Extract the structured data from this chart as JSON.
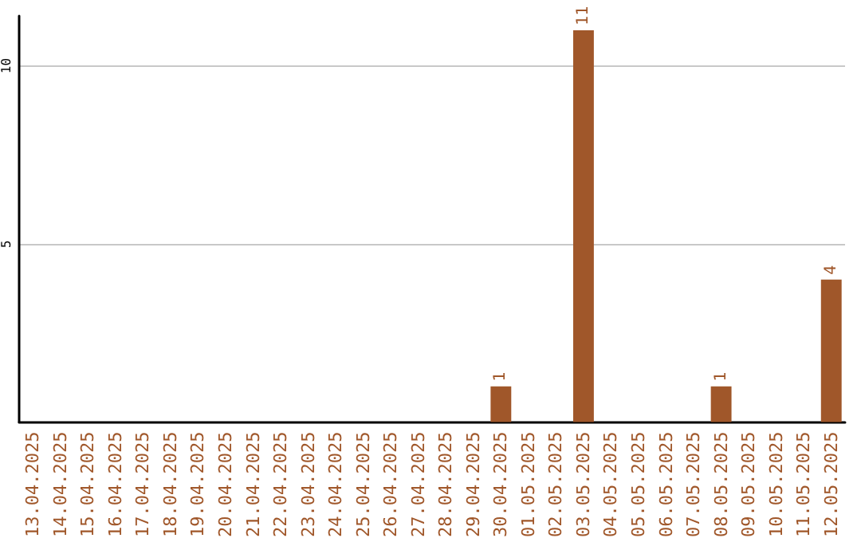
{
  "chart_data": {
    "type": "bar",
    "categories": [
      "13.04.2025",
      "14.04.2025",
      "15.04.2025",
      "16.04.2025",
      "17.04.2025",
      "18.04.2025",
      "19.04.2025",
      "20.04.2025",
      "21.04.2025",
      "22.04.2025",
      "23.04.2025",
      "24.04.2025",
      "25.04.2025",
      "26.04.2025",
      "27.04.2025",
      "28.04.2025",
      "29.04.2025",
      "30.04.2025",
      "01.05.2025",
      "02.05.2025",
      "03.05.2025",
      "04.05.2025",
      "05.05.2025",
      "06.05.2025",
      "07.05.2025",
      "08.05.2025",
      "09.05.2025",
      "10.05.2025",
      "11.05.2025",
      "12.05.2025"
    ],
    "values": [
      0,
      0,
      0,
      0,
      0,
      0,
      0,
      0,
      0,
      0,
      0,
      0,
      0,
      0,
      0,
      0,
      0,
      1,
      0,
      0,
      11,
      0,
      0,
      0,
      0,
      1,
      0,
      0,
      0,
      4
    ],
    "value_labels": [
      null,
      null,
      null,
      null,
      null,
      null,
      null,
      null,
      null,
      null,
      null,
      null,
      null,
      null,
      null,
      null,
      null,
      "1",
      null,
      null,
      "11",
      null,
      null,
      null,
      null,
      "1",
      null,
      null,
      null,
      "4"
    ],
    "color": "#a0572a",
    "ylim": [
      0,
      11.4
    ],
    "yticks": [
      5,
      10
    ],
    "grid": "y"
  }
}
